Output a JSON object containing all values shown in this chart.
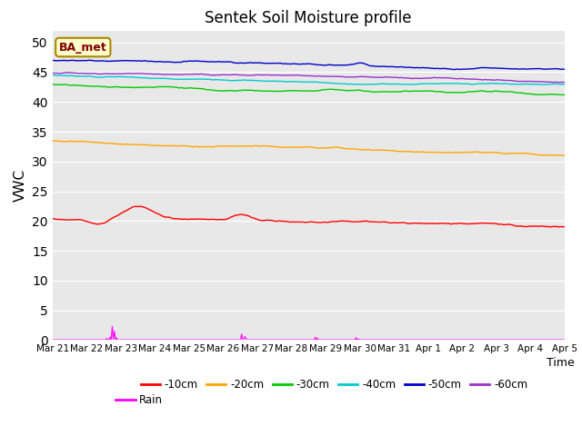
{
  "title": "Sentek Soil Moisture profile",
  "xlabel": "Time",
  "ylabel": "VWC",
  "legend_label": "BA_met",
  "ylim": [
    0,
    52
  ],
  "yticks": [
    0,
    5,
    10,
    15,
    20,
    25,
    30,
    35,
    40,
    45,
    50
  ],
  "bg_color": "#e8e8e8",
  "plot_bg": "#e8e8e8",
  "series": {
    "-10cm": {
      "color": "#ff0000"
    },
    "-20cm": {
      "color": "#ffa500"
    },
    "-30cm": {
      "color": "#00cc00"
    },
    "-40cm": {
      "color": "#00cccc"
    },
    "-50cm": {
      "color": "#0000cc"
    },
    "-60cm": {
      "color": "#9933cc"
    }
  },
  "n_points": 480,
  "xtick_labels": [
    "Mar 21",
    "Mar 22",
    "Mar 23",
    "Mar 24",
    "Mar 25",
    "Mar 26",
    "Mar 27",
    "Mar 28",
    "Mar 29",
    "Mar 30",
    "Mar 31",
    "Apr 1",
    "Apr 2",
    "Apr 3",
    "Apr 4",
    "Apr 5"
  ],
  "rain_color": "#ff00ff",
  "grid_color": "#ffffff"
}
